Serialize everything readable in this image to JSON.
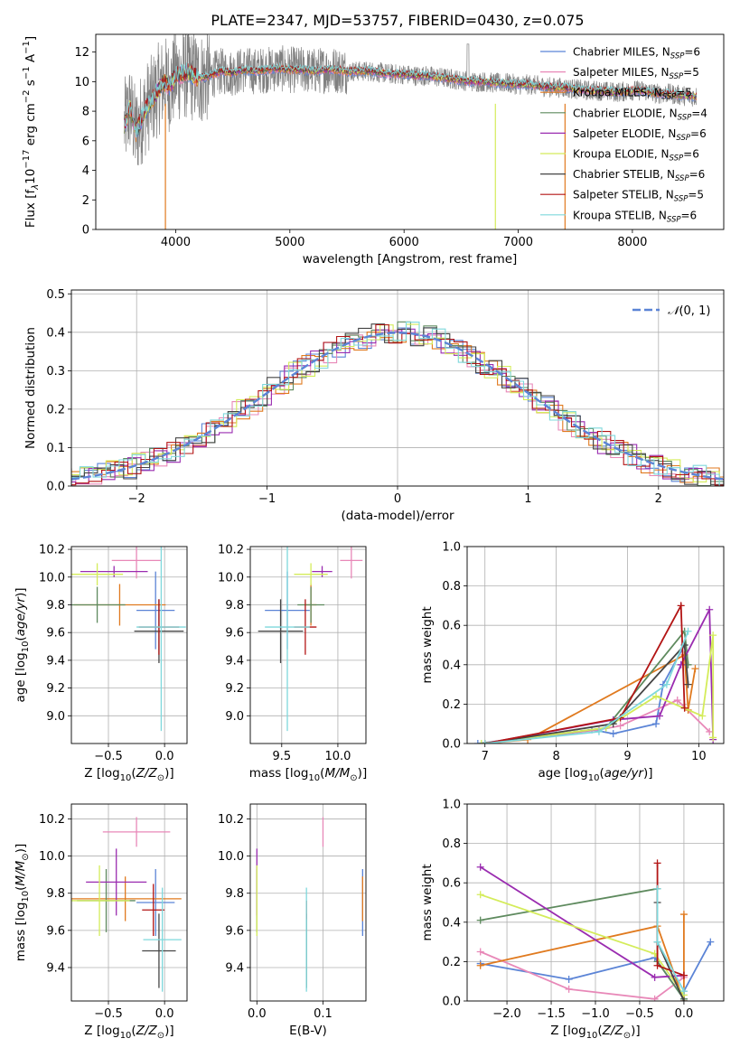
{
  "figure": {
    "title": "PLATE=2347, MJD=53757, FIBERID=0430, z=0.075"
  },
  "colors": {
    "Chabrier MILES": "#5b84d6",
    "Salpeter MILES": "#e888b8",
    "Kroupa MILES": "#e07a1f",
    "Chabrier ELODIE": "#5e8a5e",
    "Salpeter ELODIE": "#9a2cb0",
    "Kroupa ELODIE": "#d4ec5a",
    "Chabrier STELIB": "#454545",
    "Salpeter STELIB": "#b31515",
    "Kroupa STELIB": "#7fd8dc",
    "data": "#808080",
    "gaussian": "#5b84d6"
  },
  "chart_data": [
    {
      "id": "spectrum",
      "type": "line",
      "xlabel": "wavelength [Angstrom, rest frame]",
      "ylabel": "Flux [f_λ10^-17 erg cm^-2 s^-1 A^-1]",
      "xlim": [
        3300,
        8800
      ],
      "ylim": [
        0,
        13.2
      ],
      "xticks": [
        4000,
        5000,
        6000,
        7000,
        8000
      ],
      "yticks": [
        0,
        2,
        4,
        6,
        8,
        10,
        12
      ],
      "grid": false,
      "legend_position": "top-right",
      "observed_x": [
        3550,
        3600,
        3650,
        3700,
        3750,
        3800,
        3850,
        3900,
        3950,
        4000,
        4100,
        4200,
        4300,
        4400,
        4500,
        4600,
        4700,
        4800,
        4900,
        5000,
        5100,
        5200,
        5300,
        5400,
        5500,
        5600,
        5700,
        5800,
        5900,
        6000,
        6100,
        6200,
        6300,
        6400,
        6500,
        6600,
        6700,
        6800,
        6900,
        7000,
        7100,
        7200,
        7300,
        7400,
        7500,
        7600,
        7700,
        7800,
        7900,
        8000,
        8100,
        8200,
        8300,
        8400,
        8500
      ],
      "observed_y": [
        7.0,
        8.2,
        6.5,
        7.5,
        8.3,
        8.8,
        9.5,
        10.0,
        9.7,
        10.4,
        10.6,
        10.2,
        10.4,
        10.7,
        10.6,
        10.8,
        10.7,
        10.8,
        10.9,
        10.8,
        10.8,
        10.7,
        10.8,
        10.8,
        10.7,
        10.7,
        10.7,
        10.6,
        10.5,
        10.5,
        10.4,
        10.4,
        10.3,
        10.2,
        10.1,
        10.0,
        10.0,
        9.9,
        9.9,
        9.8,
        9.8,
        9.7,
        9.6,
        9.6,
        9.5,
        9.4,
        9.4,
        9.3,
        9.3,
        9.4,
        9.4,
        9.2,
        9.2,
        9.1,
        9.0
      ],
      "series": [
        {
          "name": "Chabrier MILES, N_SSP=6",
          "legend_main": "Chabrier MILES, N",
          "legend_sub": "SSP",
          "legend_n": "=6"
        },
        {
          "name": "Salpeter MILES, N_SSP=5",
          "legend_main": "Salpeter MILES, N",
          "legend_sub": "SSP",
          "legend_n": "=5"
        },
        {
          "name": "Kroupa MILES, N_SSP=5",
          "legend_main": "Kroupa MILES, N",
          "legend_sub": "SSP",
          "legend_n": "=5"
        },
        {
          "name": "Chabrier ELODIE, N_SSP=4",
          "legend_main": "Chabrier ELODIE, N",
          "legend_sub": "SSP",
          "legend_n": "=4"
        },
        {
          "name": "Salpeter ELODIE, N_SSP=6",
          "legend_main": "Salpeter ELODIE, N",
          "legend_sub": "SSP",
          "legend_n": "=6"
        },
        {
          "name": "Kroupa ELODIE, N_SSP=6",
          "legend_main": "Kroupa ELODIE, N",
          "legend_sub": "SSP",
          "legend_n": "=6"
        },
        {
          "name": "Chabrier STELIB, N_SSP=6",
          "legend_main": "Chabrier STELIB, N",
          "legend_sub": "SSP",
          "legend_n": "=6"
        },
        {
          "name": "Salpeter STELIB, N_SSP=5",
          "legend_main": "Salpeter STELIB, N",
          "legend_sub": "SSP",
          "legend_n": "=5"
        },
        {
          "name": "Kroupa STELIB, N_SSP=6",
          "legend_main": "Kroupa STELIB, N",
          "legend_sub": "SSP",
          "legend_n": "=6"
        }
      ]
    },
    {
      "id": "residuals",
      "type": "histogram",
      "xlabel": "(data-model)/error",
      "ylabel": "Normed distribution",
      "xlim": [
        -2.5,
        2.5
      ],
      "ylim": [
        0,
        0.51
      ],
      "xticks": [
        -2,
        -1,
        0,
        1,
        2
      ],
      "yticks": [
        0.0,
        0.1,
        0.2,
        0.3,
        0.4,
        0.5
      ],
      "grid": true,
      "legend_position": "top-right",
      "gaussian_label": "N(0,1)",
      "bin_width": 0.1
    },
    {
      "id": "age_vs_Z",
      "type": "errorbar",
      "xlabel": "Z [log10(Z/Z⊙)]",
      "ylabel": "age [log10(age/yr)]",
      "xlim": [
        -0.83,
        0.2
      ],
      "ylim": [
        8.8,
        10.22
      ],
      "xticks": [
        -0.5,
        0.0
      ],
      "yticks": [
        9.0,
        9.2,
        9.4,
        9.6,
        9.8,
        10.0,
        10.2
      ],
      "grid": true,
      "points": [
        {
          "series": "Chabrier MILES",
          "x": -0.08,
          "y": 9.76,
          "xerr": 0.17,
          "yerr": 0.28
        },
        {
          "series": "Salpeter MILES",
          "x": -0.25,
          "y": 10.12,
          "xerr": 0.22,
          "yerr": 0.13
        },
        {
          "series": "Kroupa MILES",
          "x": -0.4,
          "y": 9.8,
          "xerr": 0.41,
          "yerr": 0.15
        },
        {
          "series": "Chabrier ELODIE",
          "x": -0.6,
          "y": 9.8,
          "xerr": 0.25,
          "yerr": 0.13
        },
        {
          "series": "Salpeter ELODIE",
          "x": -0.45,
          "y": 10.04,
          "xerr": 0.3,
          "yerr": 0.04
        },
        {
          "series": "Kroupa ELODIE",
          "x": -0.6,
          "y": 10.02,
          "xerr": 0.23,
          "yerr": 0.08
        },
        {
          "series": "Chabrier STELIB",
          "x": -0.05,
          "y": 9.61,
          "xerr": 0.22,
          "yerr": 0.23
        },
        {
          "series": "Salpeter STELIB",
          "x": -0.05,
          "y": 9.64,
          "xerr": 0.18,
          "yerr": 0.2
        },
        {
          "series": "Kroupa STELIB",
          "x": -0.03,
          "y": 9.64,
          "xerr": 0.22,
          "yerr": 0.75
        }
      ]
    },
    {
      "id": "age_vs_mass",
      "type": "errorbar",
      "xlabel": "mass [log10(M/M⊙)]",
      "ylabel": "",
      "xlim": [
        9.22,
        10.25
      ],
      "ylim": [
        8.8,
        10.22
      ],
      "xticks": [
        9.5,
        10.0
      ],
      "yticks": [
        9.0,
        9.2,
        9.4,
        9.6,
        9.8,
        10.0,
        10.2
      ],
      "grid": true,
      "points": [
        {
          "series": "Chabrier MILES",
          "x": 9.55,
          "y": 9.76,
          "xerr": 0.2,
          "yerr": 0.28
        },
        {
          "series": "Salpeter MILES",
          "x": 10.12,
          "y": 10.12,
          "xerr": 0.1,
          "yerr": 0.13
        },
        {
          "series": "Kroupa MILES",
          "x": 9.76,
          "y": 9.8,
          "xerr": 0.05,
          "yerr": 0.15
        },
        {
          "series": "Chabrier ELODIE",
          "x": 9.76,
          "y": 9.8,
          "xerr": 0.12,
          "yerr": 0.13
        },
        {
          "series": "Salpeter ELODIE",
          "x": 9.86,
          "y": 10.04,
          "xerr": 0.09,
          "yerr": 0.04
        },
        {
          "series": "Kroupa ELODIE",
          "x": 9.76,
          "y": 10.02,
          "xerr": 0.15,
          "yerr": 0.08
        },
        {
          "series": "Chabrier STELIB",
          "x": 9.49,
          "y": 9.61,
          "xerr": 0.2,
          "yerr": 0.23
        },
        {
          "series": "Salpeter STELIB",
          "x": 9.71,
          "y": 9.64,
          "xerr": 0.1,
          "yerr": 0.2
        },
        {
          "series": "Kroupa STELIB",
          "x": 9.55,
          "y": 9.64,
          "xerr": 0.2,
          "yerr": 0.75
        }
      ]
    },
    {
      "id": "massweight_vs_age",
      "type": "line",
      "xlabel": "age [log10(age/yr)]",
      "ylabel": "mass weight",
      "xlim": [
        6.75,
        10.35
      ],
      "ylim": [
        0,
        1.0
      ],
      "xticks": [
        7,
        8,
        9,
        10
      ],
      "yticks": [
        0.0,
        0.2,
        0.4,
        0.6,
        0.8,
        1.0
      ],
      "grid": true,
      "series": [
        {
          "name": "Chabrier MILES",
          "x": [
            6.9,
            8.5,
            8.8,
            9.4,
            9.5,
            9.8
          ],
          "y": [
            0.0,
            0.07,
            0.05,
            0.1,
            0.3,
            0.5
          ]
        },
        {
          "name": "Salpeter MILES",
          "x": [
            7.0,
            8.6,
            8.9,
            9.7,
            10.15
          ],
          "y": [
            0.0,
            0.07,
            0.09,
            0.22,
            0.06
          ]
        },
        {
          "name": "Kroupa MILES",
          "x": [
            7.0,
            7.6,
            9.8,
            9.85,
            9.95
          ],
          "y": [
            0.0,
            0.02,
            0.45,
            0.17,
            0.38
          ]
        },
        {
          "name": "Chabrier ELODIE",
          "x": [
            7.0,
            8.7,
            9.8,
            9.85
          ],
          "y": [
            0.0,
            0.08,
            0.57,
            0.4
          ]
        },
        {
          "name": "Salpeter ELODIE",
          "x": [
            7.0,
            8.8,
            9.45,
            9.75,
            10.15,
            10.2
          ],
          "y": [
            0.0,
            0.12,
            0.14,
            0.4,
            0.68,
            0.02
          ]
        },
        {
          "name": "Kroupa ELODIE",
          "x": [
            6.95,
            8.7,
            9.4,
            10.05,
            10.2,
            10.2
          ],
          "y": [
            0.0,
            0.08,
            0.24,
            0.14,
            0.55,
            0.03
          ]
        },
        {
          "name": "Chabrier STELIB",
          "x": [
            7.0,
            8.8,
            9.8,
            9.85
          ],
          "y": [
            0.0,
            0.1,
            0.5,
            0.3
          ]
        },
        {
          "name": "Salpeter STELIB",
          "x": [
            7.0,
            8.9,
            9.75,
            9.8
          ],
          "y": [
            0.0,
            0.13,
            0.7,
            0.18
          ]
        },
        {
          "name": "Kroupa STELIB",
          "x": [
            7.0,
            8.6,
            9.55,
            9.85
          ],
          "y": [
            0.0,
            0.06,
            0.3,
            0.57
          ]
        }
      ]
    },
    {
      "id": "mass_vs_Z",
      "type": "errorbar",
      "xlabel": "Z [log10(Z/Z⊙)]",
      "ylabel": "mass [log10(M/M⊙)]",
      "xlim": [
        -0.83,
        0.2
      ],
      "ylim": [
        9.22,
        10.28
      ],
      "xticks": [
        -0.5,
        0.0
      ],
      "yticks": [
        9.4,
        9.6,
        9.8,
        10.0,
        10.2
      ],
      "grid": true,
      "points": [
        {
          "series": "Chabrier MILES",
          "x": -0.08,
          "y": 9.75,
          "xerr": 0.17,
          "yerr": 0.18
        },
        {
          "series": "Salpeter MILES",
          "x": -0.25,
          "y": 10.13,
          "xerr": 0.3,
          "yerr": 0.08
        },
        {
          "series": "Kroupa MILES",
          "x": -0.35,
          "y": 9.77,
          "xerr": 0.5,
          "yerr": 0.12
        },
        {
          "series": "Chabrier ELODIE",
          "x": -0.52,
          "y": 9.76,
          "xerr": 0.26,
          "yerr": 0.17
        },
        {
          "series": "Salpeter ELODIE",
          "x": -0.43,
          "y": 9.86,
          "xerr": 0.27,
          "yerr": 0.18
        },
        {
          "series": "Kroupa ELODIE",
          "x": -0.58,
          "y": 9.76,
          "xerr": 0.27,
          "yerr": 0.19
        },
        {
          "series": "Chabrier STELIB",
          "x": -0.05,
          "y": 9.49,
          "xerr": 0.15,
          "yerr": 0.2
        },
        {
          "series": "Salpeter STELIB",
          "x": -0.1,
          "y": 9.71,
          "xerr": 0.1,
          "yerr": 0.14
        },
        {
          "series": "Kroupa STELIB",
          "x": -0.02,
          "y": 9.55,
          "xerr": 0.17,
          "yerr": 0.28
        }
      ]
    },
    {
      "id": "mass_vs_EBV",
      "type": "errorbar",
      "xlabel": "E(B-V)",
      "ylabel": "",
      "xlim": [
        -0.01,
        0.165
      ],
      "ylim": [
        9.22,
        10.28
      ],
      "xticks": [
        0.0,
        0.1
      ],
      "yticks": [
        9.4,
        9.6,
        9.8,
        10.0,
        10.2
      ],
      "grid": true,
      "points": [
        {
          "series": "Chabrier MILES",
          "x": 0.16,
          "y": 9.75,
          "xerr": 0.0,
          "yerr": 0.18
        },
        {
          "series": "Salpeter MILES",
          "x": 0.1,
          "y": 10.13,
          "xerr": 0.0,
          "yerr": 0.08
        },
        {
          "series": "Kroupa MILES",
          "x": 0.16,
          "y": 9.77,
          "xerr": 0.0,
          "yerr": 0.12
        },
        {
          "series": "Chabrier ELODIE",
          "x": 0.0,
          "y": 9.76,
          "xerr": 0.0,
          "yerr": 0.17
        },
        {
          "series": "Salpeter ELODIE",
          "x": 0.0,
          "y": 9.86,
          "xerr": 0.0,
          "yerr": 0.18
        },
        {
          "series": "Kroupa ELODIE",
          "x": 0.0,
          "y": 9.76,
          "xerr": 0.0,
          "yerr": 0.19
        },
        {
          "series": "Chabrier STELIB",
          "x": 0.075,
          "y": 9.49,
          "xerr": 0.0,
          "yerr": 0.2
        },
        {
          "series": "Salpeter STELIB",
          "x": 0.075,
          "y": 9.71,
          "xerr": 0.0,
          "yerr": 0.05
        },
        {
          "series": "Kroupa STELIB",
          "x": 0.075,
          "y": 9.55,
          "xerr": 0.0,
          "yerr": 0.28
        }
      ]
    },
    {
      "id": "massweight_vs_Z",
      "type": "line",
      "xlabel": "Z [log10(Z/Z⊙)]",
      "ylabel": "mass weight",
      "xlim": [
        -2.45,
        0.45
      ],
      "ylim": [
        0,
        1.0
      ],
      "xticks": [
        -2.0,
        -1.5,
        -1.0,
        -0.5,
        0.0
      ],
      "yticks": [
        0.0,
        0.2,
        0.4,
        0.6,
        0.8,
        1.0
      ],
      "grid": true,
      "series": [
        {
          "name": "Chabrier MILES",
          "x": [
            -2.3,
            -1.3,
            -0.33,
            0.0,
            0.0,
            0.3
          ],
          "y": [
            0.19,
            0.11,
            0.22,
            0.01,
            0.05,
            0.3
          ]
        },
        {
          "name": "Salpeter MILES",
          "x": [
            -2.3,
            -1.3,
            -0.33,
            0.0
          ],
          "y": [
            0.25,
            0.06,
            0.01,
            0.12
          ]
        },
        {
          "name": "Kroupa MILES",
          "x": [
            -2.3,
            -0.3,
            0.0,
            0.0
          ],
          "y": [
            0.18,
            0.38,
            0.0,
            0.44
          ]
        },
        {
          "name": "Chabrier ELODIE",
          "x": [
            -2.3,
            -0.3,
            -0.3,
            0.0
          ],
          "y": [
            0.41,
            0.57,
            0.2,
            0.01
          ]
        },
        {
          "name": "Salpeter ELODIE",
          "x": [
            -2.3,
            -0.33,
            0.0
          ],
          "y": [
            0.68,
            0.12,
            0.13
          ]
        },
        {
          "name": "Kroupa ELODIE",
          "x": [
            -2.3,
            -0.33,
            0.0
          ],
          "y": [
            0.54,
            0.24,
            0.03
          ]
        },
        {
          "name": "Chabrier STELIB",
          "x": [
            -0.3,
            -0.3,
            0.0
          ],
          "y": [
            0.5,
            0.3,
            0.0
          ]
        },
        {
          "name": "Salpeter STELIB",
          "x": [
            -0.3,
            -0.3,
            0.0
          ],
          "y": [
            0.7,
            0.18,
            0.13
          ]
        },
        {
          "name": "Kroupa STELIB",
          "x": [
            -0.3,
            -0.3,
            0.0
          ],
          "y": [
            0.57,
            0.3,
            0.05
          ]
        }
      ]
    }
  ]
}
